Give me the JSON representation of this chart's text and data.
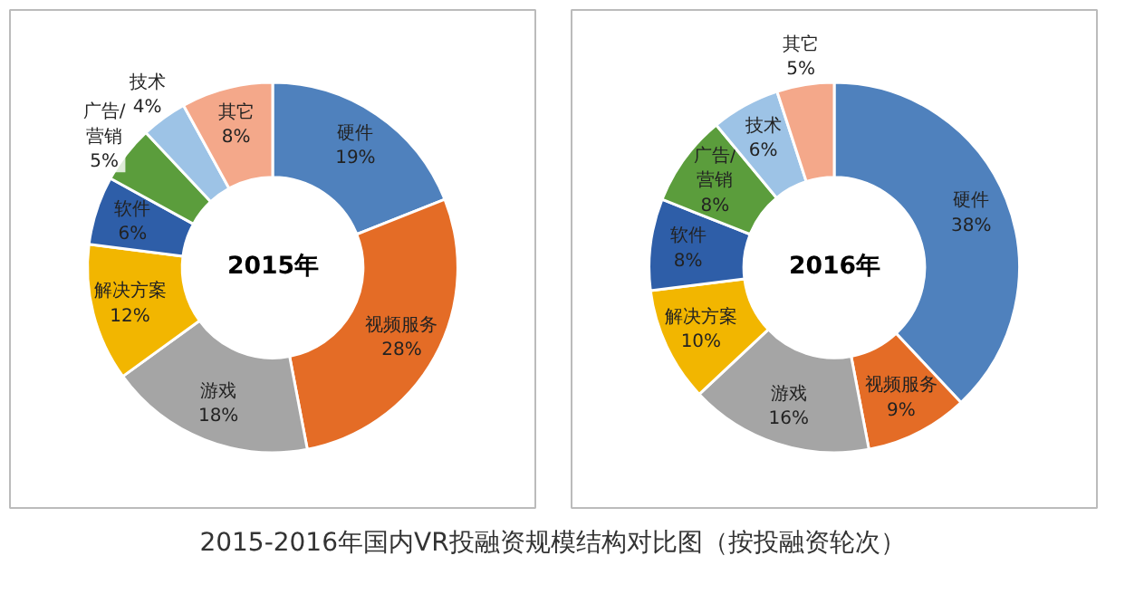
{
  "chart_data": [
    {
      "type": "donut",
      "title": "2015年",
      "categories": [
        "硬件",
        "视频服务",
        "游戏",
        "解决方案",
        "软件",
        "广告/\n营销",
        "技术",
        "其它"
      ],
      "values": [
        19,
        28,
        18,
        12,
        6,
        5,
        4,
        8
      ],
      "colors": [
        "#4f81bd",
        "#e46c26",
        "#a5a5a5",
        "#f2b600",
        "#2e5ea8",
        "#5b9d3c",
        "#9dc3e6",
        "#f4a88a"
      ],
      "value_labels": [
        "19%",
        "28%",
        "18%",
        "12%",
        "6%",
        "5%",
        "4%",
        "8%"
      ],
      "annotations": [
        "2015-2016年国内VR投融资规模结构对比图（按投融资轮次）"
      ]
    },
    {
      "type": "donut",
      "title": "2016年",
      "categories": [
        "硬件",
        "视频服务",
        "游戏",
        "解决方案",
        "软件",
        "广告/\n营销",
        "技术",
        "其它"
      ],
      "values": [
        38,
        9,
        16,
        10,
        8,
        8,
        6,
        5
      ],
      "colors": [
        "#4f81bd",
        "#e46c26",
        "#a5a5a5",
        "#f2b600",
        "#2e5ea8",
        "#5b9d3c",
        "#9dc3e6",
        "#f4a88a"
      ],
      "value_labels": [
        "38%",
        "9%",
        "16%",
        "10%",
        "8%",
        "8%",
        "6%",
        "5%"
      ]
    }
  ]
}
